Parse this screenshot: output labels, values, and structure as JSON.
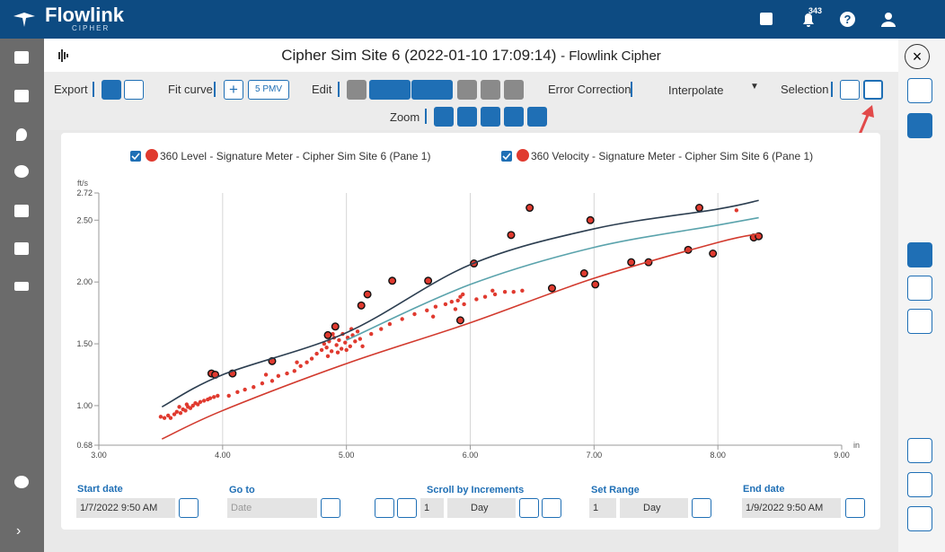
{
  "header": {
    "brand": "Flowlink",
    "sub": "CIPHER",
    "notifications": 343
  },
  "window": {
    "title": "Cipher Sim Site 6 (2022-01-10 17:09:14)",
    "suffix": "- Flowlink Cipher"
  },
  "toolbar": {
    "export": "Export",
    "fit_curve": "Fit curve",
    "pmv": "5 PMV",
    "edit": "Edit",
    "error_correction": "Error Correction",
    "interpolate": "Interpolate",
    "selection": "Selection",
    "zoom": "Zoom"
  },
  "chart_data": {
    "type": "scatter",
    "legend": [
      "360 Level - Signature Meter - Cipher Sim Site 6 (Pane 1)",
      "360 Velocity - Signature Meter - Cipher Sim Site 6 (Pane 1)"
    ],
    "legend_color": "#e03a2f",
    "y_unit": "ft/s",
    "x_unit": "in",
    "xlim": [
      3,
      9
    ],
    "xticks": [
      {
        "value": 3,
        "label": "3.00"
      },
      {
        "value": 4,
        "label": "4.00"
      },
      {
        "value": 5,
        "label": "5.00"
      },
      {
        "value": 6,
        "label": "6.00"
      },
      {
        "value": 7,
        "label": "7.00"
      },
      {
        "value": 8,
        "label": "8.00"
      },
      {
        "value": 9,
        "label": "9.00"
      }
    ],
    "ylim": [
      0.68,
      2.72
    ],
    "yticks": [
      0.68,
      {
        "value": 1,
        "label": "1.00"
      },
      {
        "value": 1.5,
        "label": "1.50"
      },
      {
        "value": 2,
        "label": "2.00"
      },
      {
        "value": 2.5,
        "label": "2.50"
      },
      2.72
    ],
    "grid": "x",
    "series": [
      {
        "kind": "dot",
        "color": "#e03a2f",
        "x": [
          3.5,
          3.53,
          3.56,
          3.58,
          3.61,
          3.63,
          3.66,
          3.68,
          3.7,
          3.72,
          3.74,
          3.76,
          3.78,
          3.8,
          3.82,
          3.85,
          3.88,
          3.9,
          3.93,
          3.96,
          3.65,
          3.71,
          4.05,
          4.12,
          4.18,
          4.25,
          4.32,
          4.4,
          4.45,
          4.52,
          4.58,
          4.63,
          4.68,
          4.72,
          4.35,
          4.6,
          4.76,
          4.8,
          4.82,
          4.84,
          4.86,
          4.88,
          4.9,
          4.92,
          4.94,
          4.96,
          4.97,
          4.99,
          5.01,
          5.03,
          5.05,
          5.07,
          5.09,
          5.11,
          4.85,
          4.93,
          5.0,
          5.04,
          4.89,
          5.13,
          5.2,
          5.28,
          5.35,
          5.45,
          5.55,
          5.65,
          5.72,
          5.8,
          5.85,
          5.9,
          5.92,
          5.94,
          5.88,
          5.95,
          5.7,
          6.05,
          6.12,
          6.2,
          6.28,
          6.35,
          6.42,
          6.18,
          8.15,
          7.97
        ],
        "values": [
          0.91,
          0.9,
          0.92,
          0.9,
          0.93,
          0.95,
          0.94,
          0.97,
          0.96,
          0.99,
          0.98,
          1.0,
          1.02,
          1.01,
          1.03,
          1.04,
          1.05,
          1.06,
          1.07,
          1.08,
          0.99,
          1.01,
          1.08,
          1.11,
          1.13,
          1.15,
          1.18,
          1.2,
          1.24,
          1.26,
          1.28,
          1.32,
          1.35,
          1.38,
          1.25,
          1.35,
          1.42,
          1.45,
          1.5,
          1.47,
          1.52,
          1.44,
          1.55,
          1.49,
          1.53,
          1.46,
          1.58,
          1.51,
          1.55,
          1.48,
          1.57,
          1.52,
          1.6,
          1.54,
          1.4,
          1.43,
          1.45,
          1.62,
          1.58,
          1.48,
          1.58,
          1.62,
          1.66,
          1.7,
          1.74,
          1.77,
          1.8,
          1.82,
          1.84,
          1.85,
          1.88,
          1.9,
          1.78,
          1.82,
          1.72,
          1.86,
          1.88,
          1.9,
          1.92,
          1.92,
          1.93,
          1.93,
          2.58,
          2.23
        ]
      },
      {
        "kind": "ring",
        "color": "#e03a2f",
        "x": [
          3.91,
          3.94,
          4.08,
          4.4,
          4.85,
          4.91,
          5.12,
          5.17,
          5.37,
          5.66,
          6.03,
          6.33,
          6.48,
          6.97,
          5.92,
          6.66,
          6.92,
          7.01,
          7.3,
          7.44,
          7.76,
          7.85,
          7.96,
          8.29,
          8.33
        ],
        "values": [
          1.26,
          1.25,
          1.26,
          1.36,
          1.57,
          1.64,
          1.81,
          1.9,
          2.01,
          2.01,
          2.15,
          2.38,
          2.6,
          2.5,
          1.69,
          1.95,
          2.07,
          1.98,
          2.16,
          2.16,
          2.26,
          2.6,
          2.23,
          2.36,
          2.37
        ]
      },
      {
        "kind": "line",
        "color": "#2c3e50",
        "x": [
          3.51,
          4,
          5,
          6,
          7,
          8,
          8.33
        ],
        "values": [
          0.99,
          1.25,
          1.59,
          2.14,
          2.43,
          2.59,
          2.66
        ]
      },
      {
        "kind": "line",
        "color": "#5aa3ac",
        "x": [
          5,
          6,
          7,
          8,
          8.33
        ],
        "values": [
          1.53,
          1.98,
          2.28,
          2.46,
          2.52
        ]
      },
      {
        "kind": "line",
        "color": "#d23a2e",
        "x": [
          3.51,
          4,
          5,
          6,
          7,
          8,
          8.33
        ],
        "values": [
          0.73,
          0.96,
          1.34,
          1.67,
          2.03,
          2.32,
          2.39
        ]
      }
    ]
  },
  "controls": {
    "start_date_label": "Start date",
    "start_date": "1/7/2022 9:50 AM",
    "goto_label": "Go to",
    "goto": "Date",
    "scroll_label": "Scroll by Increments",
    "scroll_n": "1",
    "scroll_unit": "Day",
    "range_label": "Set Range",
    "range_n": "1",
    "range_unit": "Day",
    "end_date_label": "End date",
    "end_date": "1/9/2022 9:50 AM"
  }
}
